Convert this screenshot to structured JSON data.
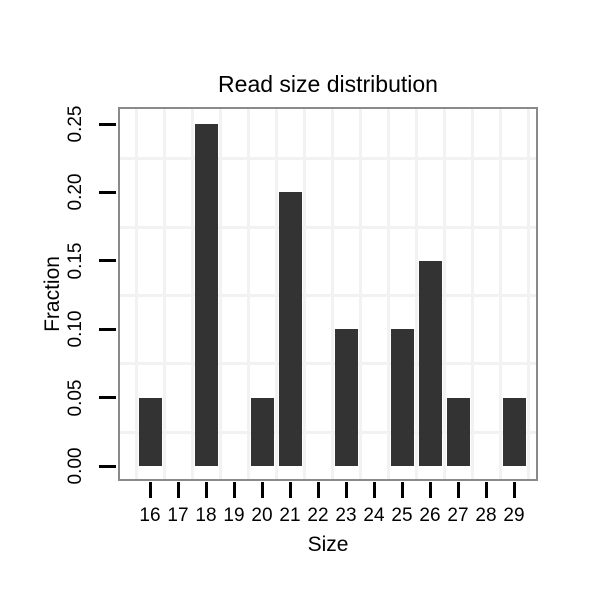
{
  "chart_data": {
    "type": "bar",
    "title": "Read size distribution",
    "xlabel": "Size",
    "ylabel": "Fraction",
    "categories": [
      "16",
      "17",
      "18",
      "19",
      "20",
      "21",
      "22",
      "23",
      "24",
      "25",
      "26",
      "27",
      "28",
      "29"
    ],
    "values": [
      0.05,
      0,
      0.25,
      0,
      0.05,
      0.2,
      0,
      0.1,
      0,
      0.1,
      0.15,
      0.05,
      0,
      0.05
    ],
    "ytick_labels": [
      "0.00",
      "0.05",
      "0.10",
      "0.15",
      "0.20",
      "0.25"
    ],
    "ytick_values": [
      0,
      0.05,
      0.1,
      0.15,
      0.2,
      0.25
    ],
    "ylim": [
      -0.0125,
      0.2625
    ],
    "grid": "minor-gridlines-only",
    "legend": "none",
    "colors": {
      "bar": "#333333",
      "panel_border": "#8a8a8a",
      "gridline": "#f2f2f2",
      "tick": "#000000",
      "text": "#000000",
      "background": "#ffffff"
    }
  }
}
